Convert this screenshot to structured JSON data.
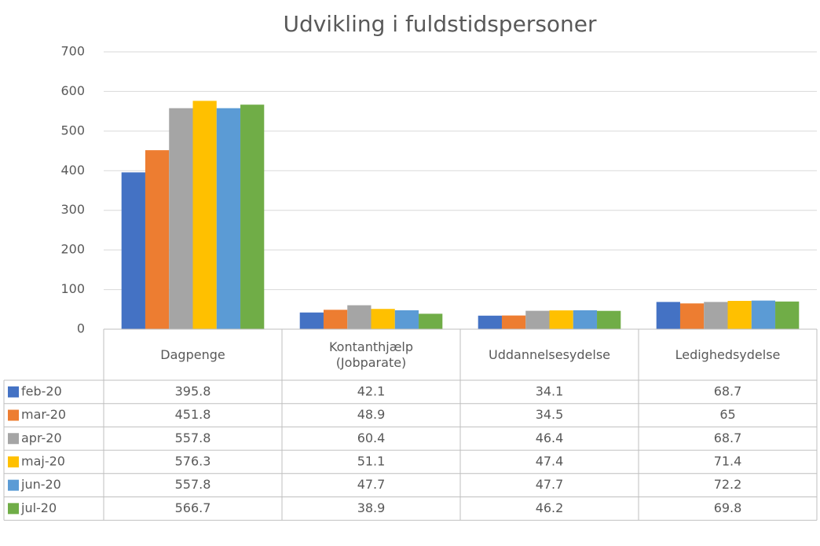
{
  "chart_data": {
    "type": "bar",
    "title": "Udvikling i fuldstidspersoner",
    "categories": [
      "Dagpenge",
      "Kontanthjælp\n(Jobparate)",
      "Uddannelsesydelse",
      "Ledighedsydelse"
    ],
    "series": [
      {
        "name": "feb-20",
        "color": "#4472c4",
        "values": [
          395.8,
          42.1,
          34.1,
          68.7
        ]
      },
      {
        "name": "mar-20",
        "color": "#ed7d31",
        "values": [
          451.8,
          48.9,
          34.5,
          65
        ]
      },
      {
        "name": "apr-20",
        "color": "#a5a5a5",
        "values": [
          557.8,
          60.4,
          46.4,
          68.7
        ]
      },
      {
        "name": "maj-20",
        "color": "#ffc000",
        "values": [
          576.3,
          51.1,
          47.4,
          71.4
        ]
      },
      {
        "name": "jun-20",
        "color": "#5b9bd5",
        "values": [
          557.8,
          47.7,
          47.7,
          72.2
        ]
      },
      {
        "name": "jul-20",
        "color": "#70ad47",
        "values": [
          566.7,
          38.9,
          46.2,
          69.8
        ]
      }
    ],
    "ylim": [
      0,
      700
    ],
    "yticks": [
      0,
      100,
      200,
      300,
      400,
      500,
      600,
      700
    ],
    "grid": true
  }
}
